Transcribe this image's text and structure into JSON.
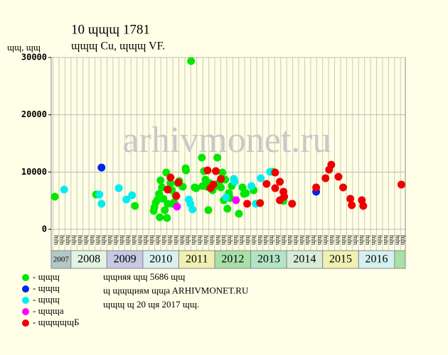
{
  "chart_data": {
    "type": "scatter",
    "title": "10 ɰɰɰ 1781",
    "subtitle": "ɰɰɰ Cu, ɰɰɰ VF.",
    "y_label": "ɰɰ, ɰɰ",
    "watermark": "arhivmonet.ru",
    "column_label": "ɰɰ",
    "footer": [
      "ɰɰняя ɰɰ 5686 ɰɰ",
      "ɰ ɰɰɰиям ɰɰa ARHIVMONET.RU",
      "ɰɰɰ ɰ 20 ɰя 2017 ɰɰ."
    ],
    "xlim": [
      2007.45,
      2017.3
    ],
    "ylim": [
      0,
      30000
    ],
    "yticks": [
      0,
      10000,
      20000,
      30000
    ],
    "grid": true,
    "years": [
      2007,
      2008,
      2009,
      2010,
      2011,
      2012,
      2013,
      2014,
      2015,
      2016
    ],
    "year_colors": [
      "#b4c8c8",
      "#e4f4e4",
      "#c8c8e4",
      "#d8f0f0",
      "#f0f0b4",
      "#a8e0a8",
      "#b4e4c4",
      "#d8ecd8",
      "#f0f0b4",
      "#d4f0f0"
    ],
    "series": [
      {
        "name": "- ɰɰɰ",
        "color": "#00e800",
        "x": [
          2007.55,
          2008.7,
          2009.78,
          2010.3,
          2010.32,
          2010.36,
          2010.41,
          2010.45,
          2010.47,
          2010.49,
          2010.53,
          2010.57,
          2010.61,
          2010.65,
          2010.67,
          2010.69,
          2010.77,
          2010.81,
          2010.83,
          2010.87,
          2010.91,
          2010.97,
          2011.01,
          2011.11,
          2011.19,
          2011.2,
          2011.34,
          2011.44,
          2011.48,
          2011.64,
          2011.66,
          2011.7,
          2011.74,
          2011.78,
          2011.82,
          2011.86,
          2011.9,
          2011.94,
          2012.02,
          2012.07,
          2012.11,
          2012.17,
          2012.21,
          2012.25,
          2012.29,
          2012.35,
          2012.39,
          2012.43,
          2012.47,
          2012.67,
          2012.77,
          2012.81,
          2012.87,
          2013.08,
          2013.62,
          2013.91
        ],
        "values": [
          5700,
          6080,
          4090,
          3220,
          3840,
          4710,
          5210,
          6200,
          2110,
          8550,
          7310,
          5330,
          3350,
          9920,
          1980,
          4460,
          8060,
          6820,
          4460,
          4710,
          5950,
          8060,
          8430,
          7440,
          10660,
          10290,
          29380,
          7310,
          7190,
          12520,
          7560,
          10170,
          8680,
          7440,
          3350,
          8060,
          7190,
          6820,
          7560,
          12520,
          8060,
          7310,
          9920,
          5080,
          8680,
          3600,
          6320,
          5450,
          7560,
          2730,
          7310,
          6200,
          6320,
          6820,
          10040,
          4960
        ]
      },
      {
        "name": "- ɰɰɰ",
        "color": "#0022ee",
        "x": [
          2008.85,
          2014.82
        ],
        "values": [
          10790,
          6570
        ]
      },
      {
        "name": "- ɰɰɰ",
        "color": "#00eeee",
        "x": [
          2007.81,
          2008.79,
          2008.85,
          2009.33,
          2009.54,
          2009.7,
          2011.28,
          2011.32,
          2011.38,
          2012.31,
          2012.53,
          2012.55,
          2013.02,
          2013.14,
          2013.28,
          2013.54
        ],
        "values": [
          6940,
          6080,
          4460,
          7190,
          5210,
          5950,
          5210,
          4460,
          3470,
          5580,
          8800,
          8310,
          7560,
          4460,
          8930,
          10040
        ]
      },
      {
        "name": "- ɰɰɰa",
        "color": "#ff00ff",
        "x": [
          2010.95,
          2012.59
        ],
        "values": [
          3970,
          5080
        ]
      },
      {
        "name": "- ɰɰɰɰɰБ",
        "color": "#ee0000",
        "x": [
          2010.69,
          2010.77,
          2010.93,
          2010.99,
          2011.8,
          2011.88,
          2011.96,
          2012.03,
          2012.17,
          2012.9,
          2013.26,
          2013.44,
          2013.68,
          2013.68,
          2013.81,
          2013.81,
          2013.91,
          2013.93,
          2014.15,
          2014.82,
          2015.08,
          2015.18,
          2015.24,
          2015.44,
          2015.57,
          2015.77,
          2015.81,
          2016.09,
          2016.13,
          2017.19
        ],
        "values": [
          6940,
          9050,
          5830,
          8180,
          10290,
          7190,
          7810,
          10170,
          8800,
          4460,
          4590,
          7930,
          9920,
          7190,
          8310,
          5080,
          6570,
          5700,
          4460,
          7310,
          8930,
          10410,
          11280,
          9170,
          7310,
          5330,
          4220,
          5080,
          4090,
          7810
        ]
      }
    ]
  }
}
